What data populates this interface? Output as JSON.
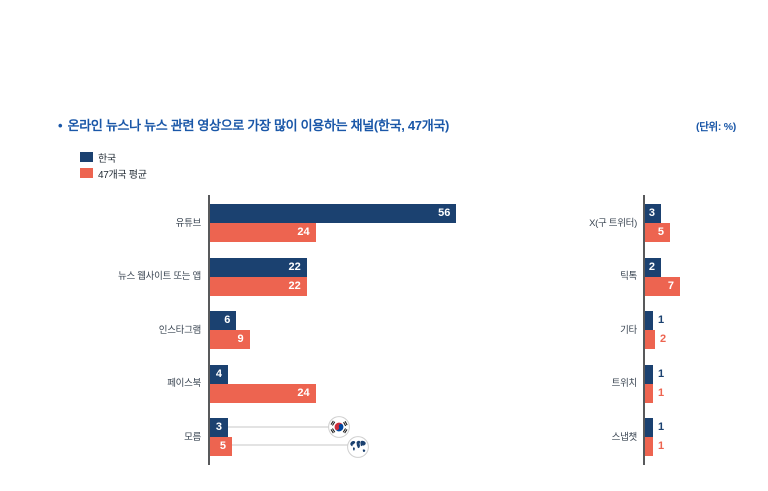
{
  "header": {
    "bullet": "•",
    "title": "온라인 뉴스나 뉴스 관련 영상으로 가장 많이 이용하는 채널(한국, 47개국)",
    "unit_note": "(단위: %)"
  },
  "legend": {
    "items": [
      {
        "label": "한국",
        "color": "#1b4170"
      },
      {
        "label": "47개국 평균",
        "color": "#ed6450"
      }
    ]
  },
  "colors": {
    "korea": "#1b4170",
    "average": "#ed6450",
    "title_blue": "#1a57a8",
    "axis": "#58595b",
    "category_label": "#3a4552",
    "connector": "#e3e3e3",
    "flag_red": "#cd2e3a",
    "flag_blue": "#0047a0"
  },
  "icons": {
    "korea_marker": "korea-flag-icon",
    "average_marker": "globe-icon"
  },
  "chart_data": {
    "type": "bar",
    "orientation": "horizontal",
    "title": "온라인 뉴스나 뉴스 관련 영상으로 가장 많이 이용하는 채널(한국, 47개국)",
    "unit": "%",
    "series_names": [
      "한국",
      "47개국 평균"
    ],
    "value_range": [
      0,
      56
    ],
    "grid": false,
    "legend_position": "top-left",
    "panels": [
      {
        "rows": [
          {
            "category": "유튜브",
            "korea": 56,
            "average": 24,
            "korea_label_inside": true,
            "average_label_inside": true
          },
          {
            "category": "뉴스 웹사이트 또는 앱",
            "korea": 22,
            "average": 22,
            "korea_label_inside": true,
            "average_label_inside": true
          },
          {
            "category": "인스타그램",
            "korea": 6,
            "average": 9,
            "korea_label_inside": true,
            "average_label_inside": true
          },
          {
            "category": "페이스북",
            "korea": 4,
            "average": 24,
            "korea_label_inside": true,
            "average_label_inside": true
          },
          {
            "category": "모름",
            "korea": 3,
            "average": 5,
            "korea_label_inside": true,
            "average_label_inside": true
          }
        ]
      },
      {
        "rows": [
          {
            "category": "X(구 트위터)",
            "korea": 3,
            "average": 5,
            "korea_label_inside": true,
            "average_label_inside": true
          },
          {
            "category": "틱톡",
            "korea": 2,
            "average": 7,
            "korea_label_inside": true,
            "average_label_inside": true
          },
          {
            "category": "기타",
            "korea": 1,
            "average": 2,
            "korea_label_inside": false,
            "average_label_inside": false
          },
          {
            "category": "트위치",
            "korea": 1,
            "average": 1,
            "korea_label_inside": false,
            "average_label_inside": false
          },
          {
            "category": "스냅챗",
            "korea": 1,
            "average": 1,
            "korea_label_inside": false,
            "average_label_inside": false
          }
        ]
      }
    ]
  }
}
